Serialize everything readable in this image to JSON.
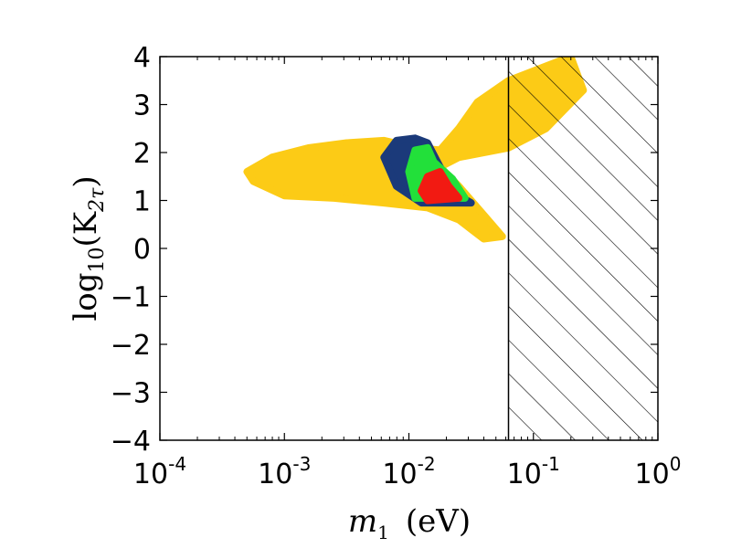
{
  "chart_data": {
    "type": "scatter",
    "title": "",
    "xlabel": {
      "base": "m",
      "sub": "1",
      "rest": "(eV)"
    },
    "ylabel": {
      "base": "log",
      "sub": "10",
      "rest1": "(K",
      "sub2": "2τ",
      "rest2": ")"
    },
    "xscale": "log",
    "xlim": [
      -4,
      0
    ],
    "ylim": [
      -4,
      4
    ],
    "x_ticks": [
      {
        "base": "10",
        "exp": "-4"
      },
      {
        "base": "10",
        "exp": "-3"
      },
      {
        "base": "10",
        "exp": "-2"
      },
      {
        "base": "10",
        "exp": "-1"
      },
      {
        "base": "10",
        "exp": "0"
      }
    ],
    "y_ticks": [
      "4",
      "3",
      "2",
      "1",
      "0",
      "−1",
      "−2",
      "−3",
      "−4"
    ],
    "y_tick_values": [
      4,
      3,
      2,
      1,
      0,
      -1,
      -2,
      -3,
      -4
    ],
    "excluded_region": {
      "x_min_log10": -1.2,
      "style": "hatched"
    },
    "series": [
      {
        "name": "yellow",
        "color": "#FCCB16",
        "regions": [
          {
            "polygon_log10m_logK": [
              [
                -3.3,
                1.6
              ],
              [
                -3.1,
                1.9
              ],
              [
                -2.8,
                2.1
              ],
              [
                -2.5,
                2.2
              ],
              [
                -2.2,
                2.25
              ],
              [
                -1.95,
                2.1
              ],
              [
                -1.75,
                2.05
              ],
              [
                -1.6,
                2.5
              ],
              [
                -1.45,
                3.05
              ],
              [
                -1.2,
                3.5
              ],
              [
                -0.9,
                3.8
              ],
              [
                -0.7,
                4.0
              ],
              [
                -0.6,
                3.3
              ],
              [
                -0.9,
                2.5
              ],
              [
                -1.2,
                2.1
              ],
              [
                -1.6,
                1.9
              ],
              [
                -1.75,
                1.7
              ],
              [
                -1.6,
                1.3
              ],
              [
                -1.4,
                0.7
              ],
              [
                -1.25,
                0.25
              ],
              [
                -1.4,
                0.2
              ],
              [
                -1.6,
                0.6
              ],
              [
                -1.85,
                0.85
              ],
              [
                -2.2,
                0.95
              ],
              [
                -2.6,
                1.05
              ],
              [
                -3.0,
                1.1
              ],
              [
                -3.25,
                1.4
              ]
            ]
          }
        ]
      },
      {
        "name": "blue",
        "color": "#1B3A7A",
        "regions": [
          {
            "polygon_log10m_logK": [
              [
                -2.1,
                2.25
              ],
              [
                -1.95,
                2.3
              ],
              [
                -1.85,
                2.2
              ],
              [
                -1.75,
                1.7
              ],
              [
                -1.6,
                1.1
              ],
              [
                -1.5,
                0.95
              ],
              [
                -1.9,
                0.95
              ],
              [
                -2.1,
                1.3
              ],
              [
                -2.2,
                1.9
              ]
            ]
          }
        ]
      },
      {
        "name": "green",
        "color": "#22E03A",
        "regions": [
          {
            "polygon_log10m_logK": [
              [
                -1.95,
                2.05
              ],
              [
                -1.85,
                2.1
              ],
              [
                -1.8,
                1.8
              ],
              [
                -1.65,
                1.45
              ],
              [
                -1.55,
                1.05
              ],
              [
                -1.95,
                1.05
              ],
              [
                -2.0,
                1.6
              ]
            ]
          }
        ]
      },
      {
        "name": "red",
        "color": "#F21A12",
        "regions": [
          {
            "polygon_log10m_logK": [
              [
                -1.85,
                1.5
              ],
              [
                -1.75,
                1.6
              ],
              [
                -1.68,
                1.3
              ],
              [
                -1.6,
                1.05
              ],
              [
                -1.85,
                1.0
              ],
              [
                -1.9,
                1.2
              ]
            ]
          }
        ]
      }
    ]
  }
}
